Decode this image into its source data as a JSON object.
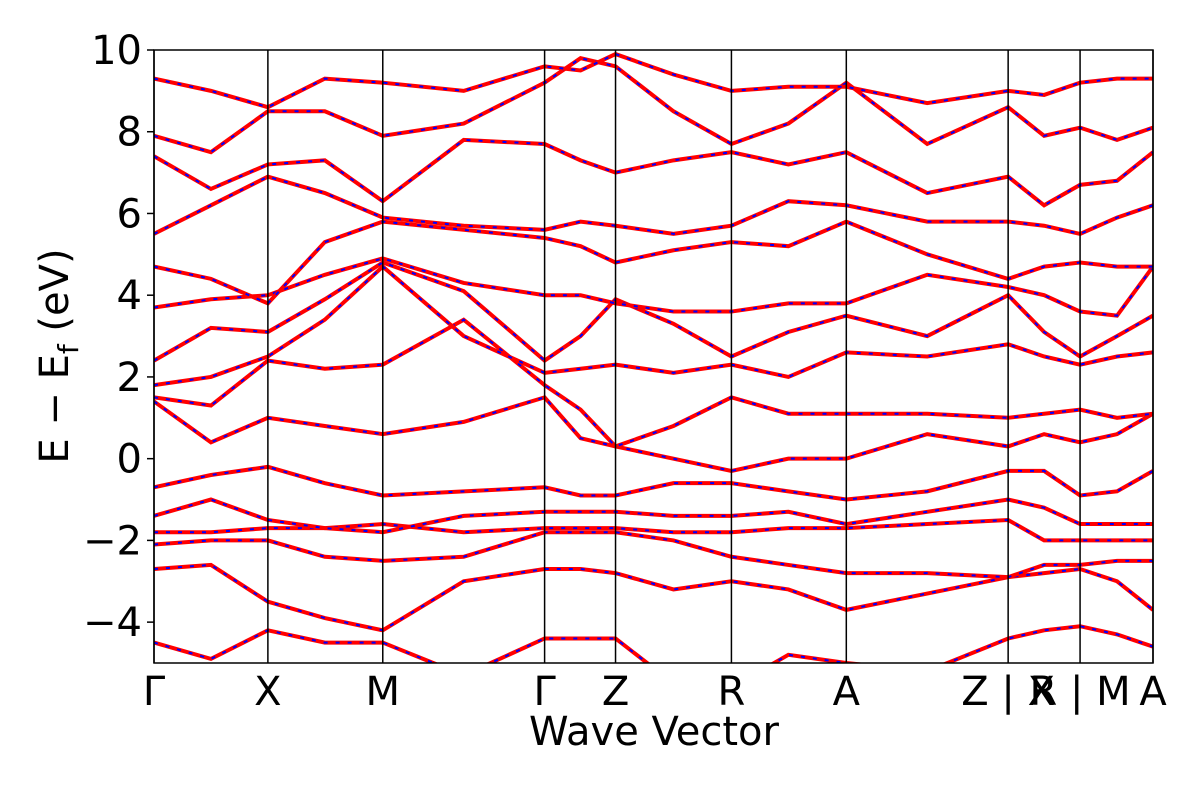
{
  "chart_data": {
    "type": "line",
    "x_label": "Wave Vector",
    "y_label": [
      "E − E",
      "f",
      " (eV)"
    ],
    "line_color": "#ff0000",
    "dash_color": "#0000ff",
    "xlim": [
      0,
      1
    ],
    "ylim": [
      -5,
      10
    ],
    "xticks": [
      {
        "value": 0,
        "label": "Γ"
      },
      {
        "value": 0.114,
        "label": "X"
      },
      {
        "value": 0.229,
        "label": "M"
      },
      {
        "value": 0.391,
        "label": "Γ"
      },
      {
        "value": 0.462,
        "label": "Z"
      },
      {
        "value": 0.578,
        "label": "R"
      },
      {
        "value": 0.693,
        "label": "A"
      },
      {
        "value": 0.855,
        "label": "Z | X"
      },
      {
        "value": 0.927,
        "label": "R | M"
      },
      {
        "value": 1,
        "label": "A"
      }
    ],
    "yticks": [
      {
        "value": -4,
        "label": "−4"
      },
      {
        "value": -2,
        "label": "−2"
      },
      0,
      2,
      4,
      6,
      8,
      10
    ],
    "x": [
      0,
      0.057,
      0.114,
      0.171,
      0.229,
      0.31,
      0.391,
      0.427,
      0.462,
      0.52,
      0.578,
      0.635,
      0.693,
      0.774,
      0.855,
      0.891,
      0.927,
      0.964,
      1
    ],
    "series": [
      {
        "values": [
          -4.5,
          -4.9,
          -4.2,
          -4.5,
          -4.5,
          -5.3,
          -4.4,
          -4.4,
          -4.4,
          -5.5,
          -5.6,
          -4.8,
          -5.0,
          -5.2,
          -4.4,
          -4.2,
          -4.1,
          -4.3,
          -4.6
        ]
      },
      {
        "values": [
          -2.7,
          -2.6,
          -3.5,
          -3.9,
          -4.2,
          -3.0,
          -2.7,
          -2.7,
          -2.8,
          -3.2,
          -3.0,
          -3.2,
          -3.7,
          -3.3,
          -2.9,
          -2.8,
          -2.7,
          -3.0,
          -3.7
        ]
      },
      {
        "values": [
          -2.1,
          -2.0,
          -2.0,
          -2.4,
          -2.5,
          -2.4,
          -1.8,
          -1.8,
          -1.8,
          -2.0,
          -2.4,
          -2.6,
          -2.8,
          -2.8,
          -2.9,
          -2.6,
          -2.6,
          -2.5,
          -2.5
        ]
      },
      {
        "values": [
          -1.8,
          -1.8,
          -1.7,
          -1.7,
          -1.6,
          -1.8,
          -1.7,
          -1.7,
          -1.7,
          -1.8,
          -1.8,
          -1.7,
          -1.7,
          -1.6,
          -1.5,
          -2.0,
          -2.0,
          -2.0,
          -2.0
        ]
      },
      {
        "values": [
          -1.4,
          -1.0,
          -1.5,
          -1.7,
          -1.8,
          -1.4,
          -1.3,
          -1.3,
          -1.3,
          -1.4,
          -1.4,
          -1.3,
          -1.6,
          -1.3,
          -1.0,
          -1.2,
          -1.6,
          -1.6,
          -1.6
        ]
      },
      {
        "values": [
          -0.7,
          -0.4,
          -0.2,
          -0.6,
          -0.9,
          -0.8,
          -0.7,
          -0.9,
          -0.9,
          -0.6,
          -0.6,
          -0.8,
          -1.0,
          -0.8,
          -0.3,
          -0.3,
          -0.9,
          -0.8,
          -0.3
        ]
      },
      {
        "values": [
          1.4,
          0.4,
          1.0,
          0.8,
          0.6,
          0.9,
          1.5,
          0.5,
          0.3,
          0.0,
          -0.3,
          0.0,
          0.0,
          0.6,
          0.3,
          0.6,
          0.4,
          0.6,
          1.1
        ]
      },
      {
        "values": [
          1.5,
          1.3,
          2.4,
          2.2,
          2.3,
          3.4,
          1.8,
          1.2,
          0.3,
          0.8,
          1.5,
          1.1,
          1.1,
          1.1,
          1.0,
          1.1,
          1.2,
          1.0,
          1.1
        ]
      },
      {
        "values": [
          1.8,
          2.0,
          2.5,
          3.4,
          4.7,
          3.0,
          2.1,
          2.2,
          2.3,
          2.1,
          2.3,
          2.0,
          2.6,
          2.5,
          2.8,
          2.5,
          2.3,
          2.5,
          2.6
        ]
      },
      {
        "values": [
          2.4,
          3.2,
          3.1,
          3.9,
          4.8,
          4.1,
          2.4,
          3.0,
          3.9,
          3.3,
          2.5,
          3.1,
          3.5,
          3.0,
          4.0,
          3.1,
          2.5,
          3.0,
          3.5
        ]
      },
      {
        "values": [
          3.7,
          3.9,
          4.0,
          4.5,
          4.9,
          4.3,
          4.0,
          4.0,
          3.8,
          3.6,
          3.6,
          3.8,
          3.8,
          4.5,
          4.2,
          4.0,
          3.6,
          3.5,
          4.7
        ]
      },
      {
        "values": [
          4.7,
          4.4,
          3.8,
          5.3,
          5.8,
          5.6,
          5.4,
          5.2,
          4.8,
          5.1,
          5.3,
          5.2,
          5.8,
          5.0,
          4.4,
          4.7,
          4.8,
          4.7,
          4.7
        ]
      },
      {
        "values": [
          5.5,
          6.2,
          6.9,
          6.5,
          5.9,
          5.7,
          5.6,
          5.8,
          5.7,
          5.5,
          5.7,
          6.3,
          6.2,
          5.8,
          5.8,
          5.7,
          5.5,
          5.9,
          6.2
        ]
      },
      {
        "values": [
          7.4,
          6.6,
          7.2,
          7.3,
          6.3,
          7.8,
          7.7,
          7.3,
          7.0,
          7.3,
          7.5,
          7.2,
          7.5,
          6.5,
          6.9,
          6.2,
          6.7,
          6.8,
          7.5
        ]
      },
      {
        "values": [
          7.9,
          7.5,
          8.5,
          8.5,
          7.9,
          8.2,
          9.2,
          9.8,
          9.6,
          8.5,
          7.7,
          8.2,
          9.2,
          7.7,
          8.6,
          7.9,
          8.1,
          7.8,
          8.1
        ]
      },
      {
        "values": [
          9.3,
          9.0,
          8.6,
          9.3,
          9.2,
          9.0,
          9.6,
          9.5,
          9.9,
          9.4,
          9.0,
          9.1,
          9.1,
          8.7,
          9.0,
          8.9,
          9.2,
          9.3,
          9.3
        ]
      }
    ]
  }
}
